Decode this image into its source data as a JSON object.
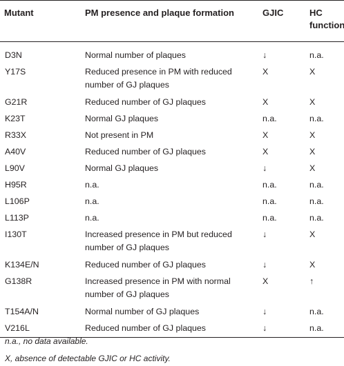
{
  "table": {
    "headers": [
      "Mutant",
      "PM presence and plaque formation",
      "GJIC",
      "HC function"
    ],
    "rows": [
      [
        "D3N",
        "Normal number of plaques",
        "↓",
        "n.a."
      ],
      [
        "Y17S",
        "Reduced presence in PM with reduced number of GJ plaques",
        "X",
        "X"
      ],
      [
        "G21R",
        "Reduced number of GJ plaques",
        "X",
        "X"
      ],
      [
        "K23T",
        "Normal GJ plaques",
        "n.a.",
        "n.a."
      ],
      [
        "R33X",
        "Not present in PM",
        "X",
        "X"
      ],
      [
        "A40V",
        "Reduced number of GJ plaques",
        "X",
        "X"
      ],
      [
        "L90V",
        "Normal GJ plaques",
        "↓",
        "X"
      ],
      [
        "H95R",
        "n.a.",
        "n.a.",
        "n.a."
      ],
      [
        "L106P",
        "n.a.",
        "n.a.",
        "n.a."
      ],
      [
        "L113P",
        "n.a.",
        "n.a.",
        "n.a."
      ],
      [
        "I130T",
        "Increased presence in PM but reduced number of GJ plaques",
        "↓",
        "X"
      ],
      [
        "K134E/N",
        "Reduced number of GJ plaques",
        "↓",
        "X"
      ],
      [
        "G138R",
        "Increased presence in PM with normal number of GJ plaques",
        "X",
        "↑"
      ],
      [
        "T154A/N",
        "Normal number of GJ plaques",
        "↓",
        "n.a."
      ],
      [
        "V216L",
        "Reduced number of GJ plaques",
        "↓",
        "n.a."
      ]
    ]
  },
  "footnotes": [
    "n.a., no data available.",
    "X, absence of detectable GJIC or HC activity."
  ]
}
